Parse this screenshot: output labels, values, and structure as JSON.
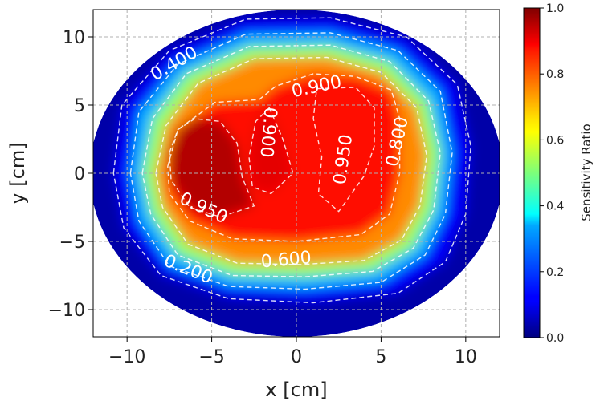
{
  "chart_data": {
    "type": "heatmap",
    "xlabel": "x [cm]",
    "ylabel": "y [cm]",
    "xlim": [
      -12,
      12
    ],
    "ylim": [
      -12,
      12
    ],
    "xticks": [
      -10,
      -5,
      0,
      5,
      10
    ],
    "yticks": [
      -10,
      -5,
      0,
      5,
      10
    ],
    "xtick_labels": [
      "−10",
      "−5",
      "0",
      "5",
      "10"
    ],
    "ytick_labels": [
      "−10",
      "−5",
      "0",
      "5",
      "10"
    ],
    "grid": true,
    "colormap": "jet",
    "colorbar": {
      "label": "Sensitivity Ratio",
      "range": [
        0.0,
        1.0
      ],
      "ticks": [
        0.0,
        0.2,
        0.4,
        0.6,
        0.8,
        1.0
      ],
      "tick_labels": [
        "0.0",
        "0.2",
        "0.4",
        "0.6",
        "0.8",
        "1.0"
      ]
    },
    "field_region": {
      "shape": "ellipse",
      "center": [
        0.0,
        0.0
      ],
      "semi_axes": [
        12.2,
        12.0
      ]
    },
    "contour_labels": [
      {
        "text": "0.400",
        "x": -7.2,
        "y": 8.0
      },
      {
        "text": "0.900",
        "x": 1.2,
        "y": 6.3
      },
      {
        "text": "0.900",
        "x": -1.7,
        "y": 3.0
      },
      {
        "text": "0.950",
        "x": 2.8,
        "y": 1.0
      },
      {
        "text": "0.800",
        "x": 6.0,
        "y": 2.3
      },
      {
        "text": "0.950",
        "x": -5.5,
        "y": -2.6
      },
      {
        "text": "0.600",
        "x": -0.6,
        "y": -6.4
      },
      {
        "text": "0.200",
        "x": -6.4,
        "y": -7.1
      }
    ],
    "contours": [
      {
        "level": 0.2,
        "points": [
          [
            -10.8,
            0
          ],
          [
            -10.3,
            5
          ],
          [
            -7.5,
            9
          ],
          [
            -3,
            11.3
          ],
          [
            2,
            11.4
          ],
          [
            6.5,
            10
          ],
          [
            9.5,
            6.5
          ],
          [
            10.3,
            2
          ],
          [
            10,
            -3
          ],
          [
            8.8,
            -6.5
          ],
          [
            6,
            -8.8
          ],
          [
            1,
            -9.5
          ],
          [
            -4,
            -9.2
          ],
          [
            -8,
            -7.5
          ],
          [
            -10.2,
            -4
          ]
        ]
      },
      {
        "level": 0.4,
        "points": [
          [
            -9.8,
            0
          ],
          [
            -9.3,
            4.5
          ],
          [
            -7,
            8
          ],
          [
            -3,
            10.2
          ],
          [
            2,
            10.3
          ],
          [
            6,
            9
          ],
          [
            8.5,
            6
          ],
          [
            9.2,
            1.5
          ],
          [
            8.8,
            -3
          ],
          [
            7.6,
            -6
          ],
          [
            5,
            -8
          ],
          [
            0.5,
            -8.5
          ],
          [
            -4,
            -8.3
          ],
          [
            -7.5,
            -6.8
          ],
          [
            -9.3,
            -3.5
          ]
        ]
      },
      {
        "level": 0.6,
        "points": [
          [
            -9.1,
            0
          ],
          [
            -8.5,
            4
          ],
          [
            -6.5,
            7.3
          ],
          [
            -2.8,
            9.3
          ],
          [
            2,
            9.4
          ],
          [
            5.5,
            8.2
          ],
          [
            7.8,
            5.3
          ],
          [
            8.5,
            1.5
          ],
          [
            8.1,
            -2.7
          ],
          [
            6.9,
            -5.5
          ],
          [
            4.5,
            -7.2
          ],
          [
            0.5,
            -7.6
          ],
          [
            -3.8,
            -7.5
          ],
          [
            -7,
            -6
          ],
          [
            -8.6,
            -3
          ]
        ]
      },
      {
        "level": 0.8,
        "points": [
          [
            -8.3,
            0
          ],
          [
            -7.7,
            3.5
          ],
          [
            -5.8,
            6.6
          ],
          [
            -2.5,
            8.4
          ],
          [
            1.8,
            8.5
          ],
          [
            5,
            7.4
          ],
          [
            7.1,
            4.8
          ],
          [
            7.7,
            1.3
          ],
          [
            7.3,
            -2.4
          ],
          [
            6.2,
            -4.9
          ],
          [
            4,
            -6.4
          ],
          [
            0.3,
            -6.7
          ],
          [
            -3.5,
            -6.6
          ],
          [
            -6.4,
            -5.2
          ],
          [
            -7.9,
            -2.5
          ]
        ]
      },
      {
        "level": 0.9,
        "points": [
          [
            -7.6,
            0.5
          ],
          [
            -7,
            3.2
          ],
          [
            -4.8,
            5.2
          ],
          [
            -2.2,
            5.4
          ],
          [
            -1.2,
            6.4
          ],
          [
            1,
            7.3
          ],
          [
            3.5,
            7.1
          ],
          [
            5.6,
            6.1
          ],
          [
            6.1,
            4
          ],
          [
            6.1,
            0
          ],
          [
            5.5,
            -3
          ],
          [
            3.8,
            -4.5
          ],
          [
            0,
            -5
          ],
          [
            -3.8,
            -4.8
          ],
          [
            -6.3,
            -3.5
          ],
          [
            -7.5,
            -1.5
          ]
        ]
      },
      {
        "level": 0.95,
        "points": [
          [
            -7.5,
            1.5
          ],
          [
            -7,
            3.2
          ],
          [
            -6,
            4
          ],
          [
            -4.5,
            3.8
          ],
          [
            -3.5,
            2.2
          ],
          [
            -3.2,
            -0.3
          ],
          [
            -2.5,
            -2.4
          ],
          [
            -4.5,
            -3.2
          ],
          [
            -6.3,
            -2.5
          ],
          [
            -7.4,
            -0.5
          ]
        ]
      },
      {
        "level": 0.95,
        "points": [
          [
            1.2,
            6.2
          ],
          [
            3.5,
            6.3
          ],
          [
            4.6,
            4.8
          ],
          [
            4.6,
            2
          ],
          [
            4,
            -0.2
          ],
          [
            2.5,
            -2.8
          ],
          [
            1.3,
            -1.5
          ],
          [
            1.5,
            1.2
          ],
          [
            1,
            4
          ]
        ]
      },
      {
        "level": 0.9,
        "points": [
          [
            -1.6,
            4.8
          ],
          [
            -0.8,
            2.5
          ],
          [
            -0.2,
            0
          ],
          [
            -1.5,
            -1.5
          ],
          [
            -2.6,
            -1
          ],
          [
            -2.8,
            1.2
          ],
          [
            -2.4,
            3.8
          ]
        ]
      }
    ]
  }
}
